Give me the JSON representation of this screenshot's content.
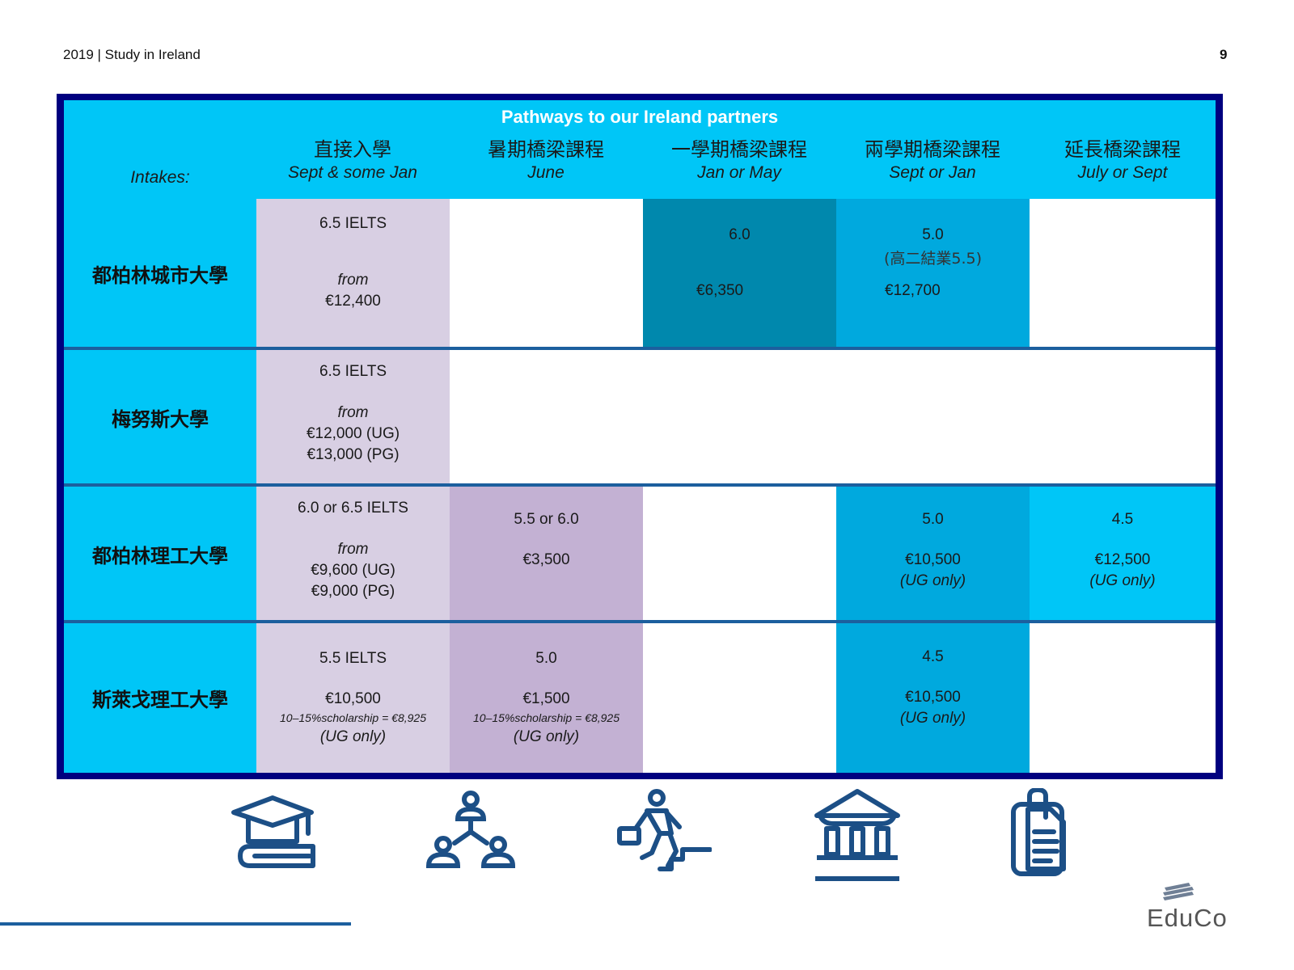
{
  "header": {
    "left": "2019 | Study in Ireland",
    "page": "9"
  },
  "table": {
    "title": "Pathways to our Ireland partners",
    "intakes_label": "Intakes:",
    "columns": [
      {
        "zh": "直接入學",
        "en": "Sept & some Jan"
      },
      {
        "zh": "暑期橋梁課程",
        "en": "June"
      },
      {
        "zh": "一學期橋梁課程",
        "en": "Jan or May"
      },
      {
        "zh": "兩學期橋梁課程",
        "en": "Sept or Jan"
      },
      {
        "zh": "延長橋梁課程",
        "en": "July or Sept"
      }
    ],
    "rows": [
      {
        "name": "都柏林城市大學",
        "direct": {
          "l1": "6.5 IELTS",
          "l2": "from",
          "l3": "€12,400"
        },
        "one_sem": {
          "l1": "6.0",
          "l2": "€6,350"
        },
        "two_sem": {
          "l1": "5.0",
          "l2": "(高二結業5.5)",
          "l3": "€12,700"
        }
      },
      {
        "name": "梅努斯大學",
        "direct": {
          "l1": "6.5 IELTS",
          "l2": "from",
          "l3": "€12,000 (UG)",
          "l4": "€13,000 (PG)"
        }
      },
      {
        "name": "都柏林理工大學",
        "direct": {
          "l1": "6.0 or 6.5 IELTS",
          "l2": "from",
          "l3": "€9,600 (UG)",
          "l4": "€9,000 (PG)"
        },
        "summer": {
          "l1": "5.5 or 6.0",
          "l2": "€3,500"
        },
        "two_sem": {
          "l1": "5.0",
          "l2": "€10,500",
          "l3": "(UG only)"
        },
        "extended": {
          "l1": "4.5",
          "l2": "€12,500",
          "l3": "(UG only)"
        }
      },
      {
        "name": "斯萊戈理工大學",
        "direct": {
          "l1": "5.5  IELTS",
          "l2": "€10,500",
          "l3": "10–15%scholarship = €8,925",
          "l4": "(UG only)"
        },
        "summer": {
          "l1": "5.0",
          "l2": "€1,500",
          "l3": "10–15%scholarship = €8,925",
          "l4": "(UG only)"
        },
        "two_sem": {
          "l1": "4.5",
          "l2": "€10,500",
          "l3": "(UG only)"
        }
      }
    ]
  },
  "icons": [
    "graduation-cap-book-icon",
    "network-people-icon",
    "businessman-stairs-icon",
    "institution-building-icon",
    "clipboard-document-icon"
  ],
  "logo": {
    "text": "EduCo"
  },
  "colors": {
    "frame": "#00007f",
    "cyan": "#00c6f7",
    "lilac": "#d8cfe3",
    "purple": "#c3b1d3",
    "teal": "#0088ad",
    "blue": "#00a9de",
    "navy_icon": "#1c4f86"
  }
}
